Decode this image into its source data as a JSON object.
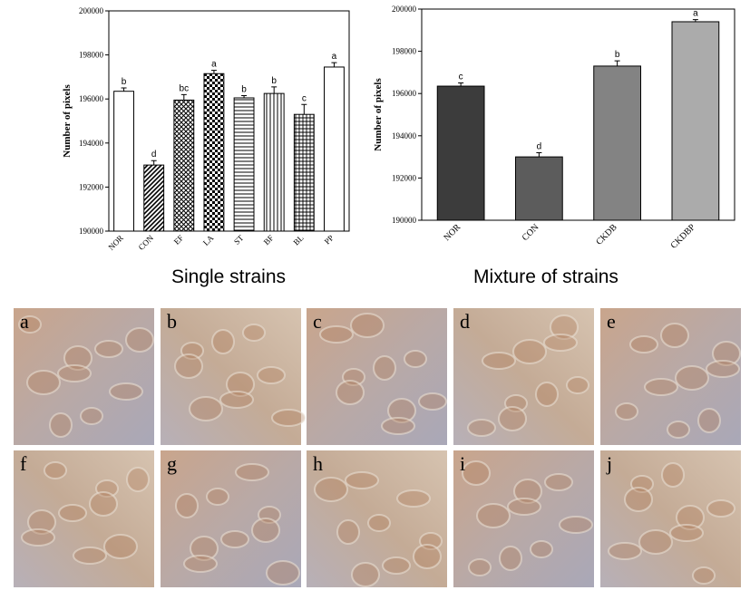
{
  "chart_data": [
    {
      "type": "bar",
      "y_label": "Number of pixels",
      "caption": "Single strains",
      "categories": [
        "NOR",
        "CON",
        "EF",
        "LA",
        "ST",
        "BF",
        "BL",
        "PP"
      ],
      "values": [
        196350,
        193000,
        195950,
        197150,
        196050,
        196250,
        195300,
        197450
      ],
      "errors": [
        150,
        200,
        250,
        150,
        100,
        300,
        450,
        200
      ],
      "annotations": [
        "b",
        "d",
        "bc",
        "a",
        "b",
        "b",
        "c",
        "a"
      ],
      "patterns": [
        "none",
        "diagonal",
        "crosshatch",
        "checker",
        "horizontal",
        "vertical",
        "grid",
        "none"
      ],
      "color": "#ffffff",
      "ylim": [
        190000,
        200000
      ],
      "yticks": [
        190000,
        192000,
        194000,
        196000,
        198000,
        200000
      ]
    },
    {
      "type": "bar",
      "y_label": "Number of pixels",
      "caption": "Mixture of strains",
      "categories": [
        "NOR",
        "CON",
        "CKDB",
        "CKDBP"
      ],
      "values": [
        196350,
        193000,
        197300,
        199400
      ],
      "errors": [
        150,
        200,
        250,
        100
      ],
      "annotations": [
        "c",
        "d",
        "b",
        "a"
      ],
      "colors": [
        "#3c3c3c",
        "#5c5c5c",
        "#838383",
        "#ababab"
      ],
      "ylim": [
        190000,
        200000
      ],
      "yticks": [
        190000,
        192000,
        194000,
        196000,
        198000,
        200000
      ]
    }
  ],
  "panels": {
    "labels": [
      "a",
      "b",
      "c",
      "d",
      "e",
      "f",
      "g",
      "h",
      "i",
      "j"
    ]
  }
}
